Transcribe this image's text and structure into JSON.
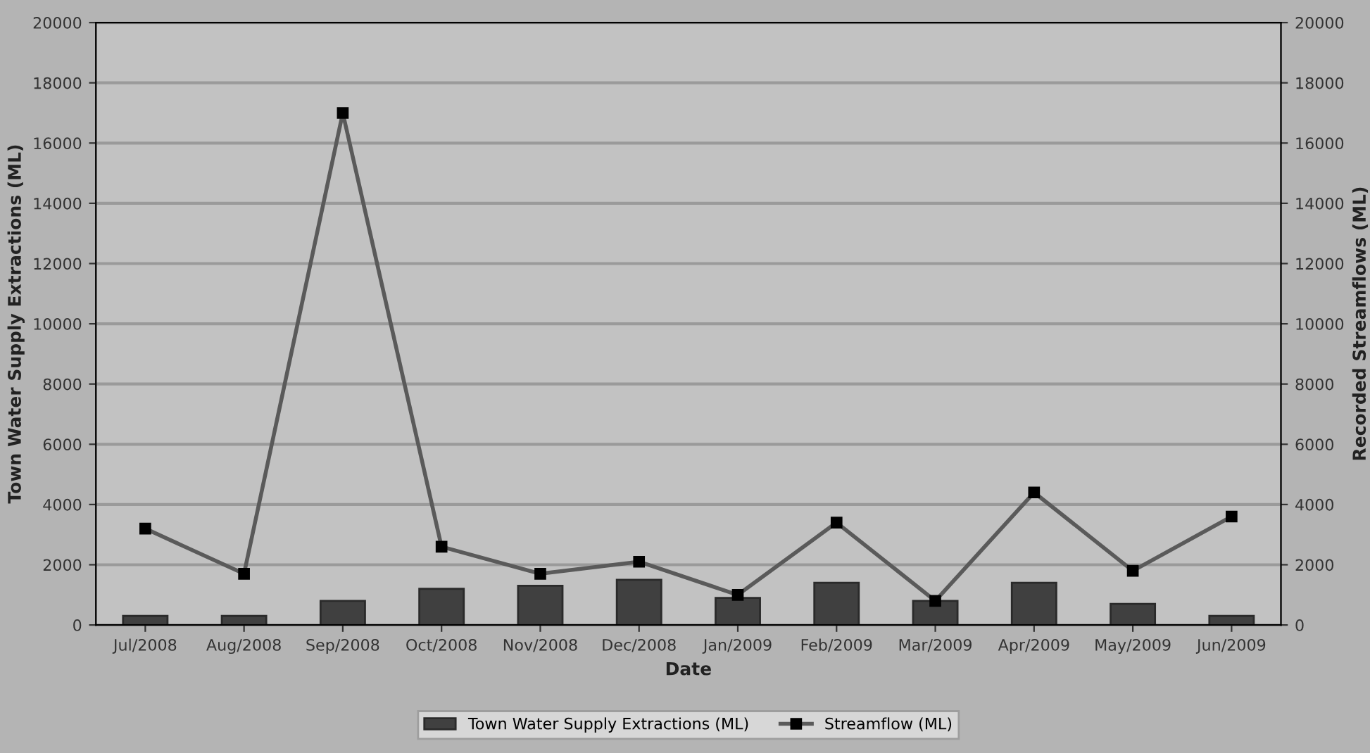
{
  "chart_data": {
    "type": "bar",
    "xlabel": "Date",
    "ylabel": "Town Water Supply Extractions (ML)",
    "y2label": "Recorded Streamflows (ML)",
    "categories": [
      "Jul/2008",
      "Aug/2008",
      "Sep/2008",
      "Oct/2008",
      "Nov/2008",
      "Dec/2008",
      "Jan/2009",
      "Feb/2009",
      "Mar/2009",
      "Apr/2009",
      "May/2009",
      "Jun/2009"
    ],
    "series": [
      {
        "name": "Town Water Supply Extractions (ML)",
        "color": "#404040",
        "values": [
          300,
          300,
          800,
          1200,
          1300,
          1500,
          900,
          1400,
          800,
          1400,
          700,
          300
        ]
      },
      {
        "name": "Streamflow (ML)",
        "type": "line",
        "axis": "y2",
        "color": "#5a5a5a",
        "marker": "square",
        "values": [
          3200,
          1700,
          17000,
          2600,
          1700,
          2100,
          1000,
          3400,
          800,
          4400,
          1800,
          3600
        ]
      }
    ],
    "ylim": [
      0,
      20000
    ],
    "yticks": [
      0,
      2000,
      4000,
      6000,
      8000,
      10000,
      12000,
      14000,
      16000,
      18000,
      20000
    ],
    "y2lim": [
      0,
      20000
    ],
    "y2ticks": [
      0,
      2000,
      4000,
      6000,
      8000,
      10000,
      12000,
      14000,
      16000,
      18000,
      20000
    ],
    "grid": "y",
    "legend": "bottom"
  }
}
